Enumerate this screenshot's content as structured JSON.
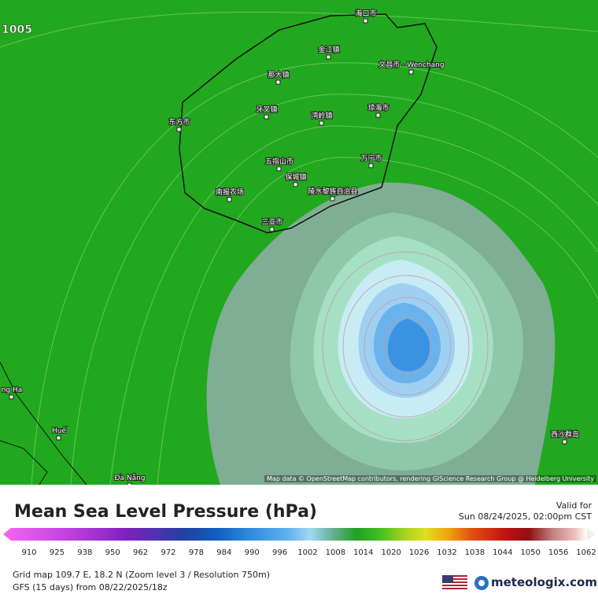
{
  "map": {
    "contour_label": "1005",
    "places": [
      "海口市",
      "金江镇",
      "文昌市 - Wenchang",
      "那大镇",
      "琼海市",
      "牙叉镇",
      "湾岭镇",
      "东方市",
      "五指山市",
      "万宁市",
      "保城镇",
      "陵水黎族自治县",
      "南报农场",
      "三亚市",
      "ng Ha",
      "Huế",
      "西沙群岛",
      "Đà Nẵng"
    ],
    "attribution": "Map data © OpenStreetMap contributors, rendering GIScience Research Group @ Heidelberg University"
  },
  "legend": {
    "title": "Mean Sea Level Pressure (hPa)",
    "valid_label": "Valid for",
    "valid_time": "Sun 08/24/2025, 02:00pm CST",
    "ticks": [
      910,
      925,
      938,
      950,
      962,
      972,
      978,
      984,
      990,
      996,
      1002,
      1008,
      1014,
      1020,
      1026,
      1032,
      1038,
      1044,
      1050,
      1056,
      1062
    ]
  },
  "footer": {
    "grid": "Grid map 109.7 E, 18.2 N (Zoom level 3 / Resolution 750m)",
    "model": "GFS (15 days) from 08/22/2025/18z",
    "brand": "meteologix.com"
  }
}
